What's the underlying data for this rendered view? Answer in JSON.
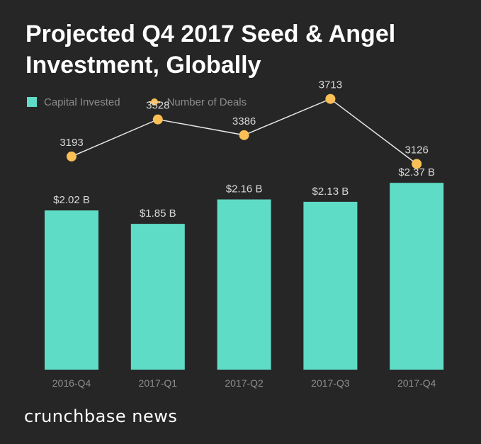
{
  "chart_data": {
    "type": "bar",
    "title": "Projected Q4 2017 Seed & Angel Investment, Globally",
    "categories": [
      "2016-Q4",
      "2017-Q1",
      "2017-Q2",
      "2017-Q3",
      "2017-Q4"
    ],
    "series": [
      {
        "name": "Capital Invested",
        "type": "bar",
        "values": [
          2.02,
          1.85,
          2.16,
          2.13,
          2.37
        ],
        "labels": [
          "$2.02 B",
          "$1.85 B",
          "$2.16 B",
          "$2.13 B",
          "$2.37 B"
        ],
        "color": "#5fdcc6"
      },
      {
        "name": "Number of Deals",
        "type": "line",
        "values": [
          3193,
          3528,
          3386,
          3713,
          3126
        ],
        "labels": [
          "3193",
          "3528",
          "3386",
          "3713",
          "3126"
        ],
        "color": "#fbbf55",
        "line_color": "#e6e6e6"
      }
    ],
    "legend": "top-left",
    "grid": false
  },
  "brand": "crunchbase news",
  "colors": {
    "background": "#262626",
    "axis_label": "#8d8d8d",
    "value_label": "#d9d9d9"
  }
}
